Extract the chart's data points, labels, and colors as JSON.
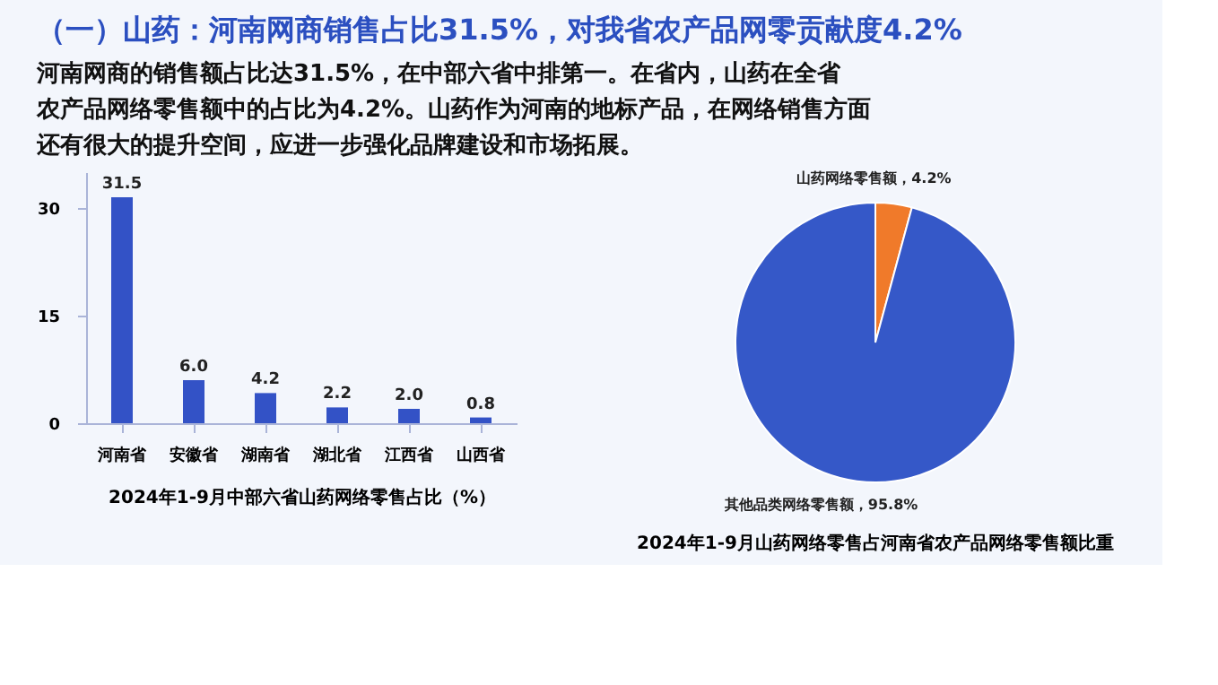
{
  "chart_data": [
    {
      "type": "bar",
      "title": "（一）山药：河南网商销售占比31.5%，对我省农产品网零贡献度4.2%",
      "subtitle": "　　河南网商的销售额占比达31.5%，在中部六省中排第一。在省内，山药在全省农产品网络零售额中的占比为4.2%。山药作为河南的地标产品，在网络销售方面还有很大的提升空间，应进一步强化品牌建设和市场拓展。",
      "xlabel": "2024年1-9月中部六省山药网络零售占比（%）",
      "categories": [
        "河南省",
        "安徽省",
        "湖南省",
        "湖北省",
        "江西省",
        "山西省"
      ],
      "values": [
        31.5,
        6.0,
        4.2,
        2.2,
        2.0,
        0.8
      ],
      "value_labels": [
        "31.5",
        "6.0",
        "4.2",
        "2.2",
        "2.0",
        "0.8"
      ],
      "color": "#3352c6",
      "ylim": [
        0,
        35
      ],
      "yticks": [
        0,
        15,
        30
      ],
      "grid": false,
      "legend": false
    },
    {
      "type": "pie",
      "title": "2024年1-9月山药网络零售占河南省农产品网络零售额比重",
      "categories": [
        "山药网络零售额",
        "其他品类网络零售额"
      ],
      "values": [
        4.2,
        95.8
      ],
      "value_labels": [
        "，4.2%",
        "，95.8%"
      ],
      "colors": [
        "#f07a2a",
        "#3558c8"
      ],
      "legend": false
    }
  ]
}
